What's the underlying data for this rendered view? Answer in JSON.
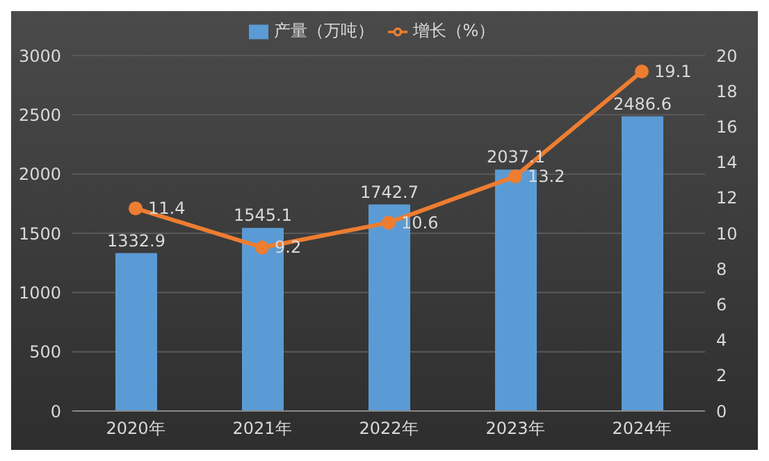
{
  "chart_data": {
    "type": "bar",
    "categories": [
      "2020年",
      "2021年",
      "2022年",
      "2023年",
      "2024年"
    ],
    "series": [
      {
        "name": "产量（万吨）",
        "color": "#5b9bd5",
        "values": [
          1332.9,
          1545.1,
          1742.7,
          2037.1,
          2486.6
        ]
      },
      {
        "name": "增长（%）",
        "type": "line",
        "axis": "y2",
        "color": "#ed7d31",
        "values": [
          11.4,
          9.2,
          10.6,
          13.2,
          19.1
        ]
      }
    ],
    "ylim": [
      0,
      3000
    ],
    "yticks": [
      0,
      500,
      1000,
      1500,
      2000,
      2500,
      3000
    ],
    "y2lim": [
      0,
      20
    ],
    "y2ticks": [
      0,
      2,
      4,
      6,
      8,
      10,
      12,
      14,
      16,
      18,
      20
    ],
    "grid": "y",
    "legend": "top",
    "data_labels": true,
    "marker": "circle"
  }
}
